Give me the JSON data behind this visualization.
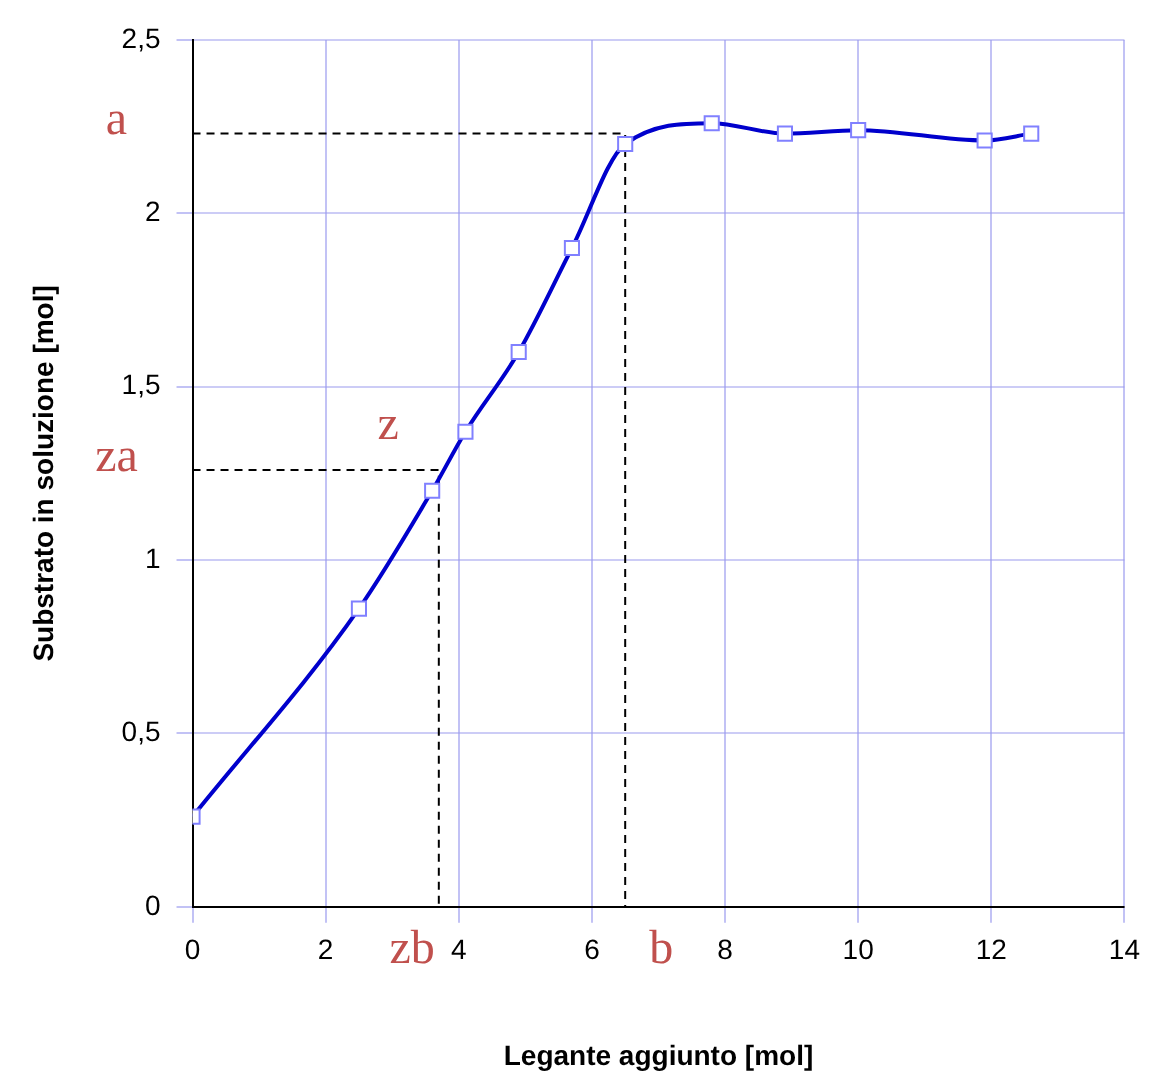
{
  "chart_data": {
    "type": "line",
    "xlabel": "Legante aggiunto [mol]",
    "ylabel": "Substrato in soluzione [mol]",
    "series": [
      {
        "color": "#0000cc",
        "x": [
          0,
          2.5,
          3.6,
          4.1,
          4.9,
          5.7,
          6.5,
          7.8,
          8.9,
          10,
          11.9,
          12.6
        ],
        "values": [
          0.26,
          0.86,
          1.2,
          1.37,
          1.6,
          1.9,
          2.2,
          2.26,
          2.23,
          2.24,
          2.21,
          2.23
        ]
      },
      {
        "color": "#000000",
        "x": [
          0,
          6.5,
          6.5
        ],
        "values": [
          2.23,
          2.23,
          0
        ],
        "line_style": "dashed",
        "marker": "none"
      },
      {
        "color": "#000000",
        "x": [
          0,
          3.7,
          3.7
        ],
        "values": [
          1.26,
          1.26,
          0
        ],
        "line_style": "dashed",
        "marker": "none"
      }
    ],
    "xlim": [
      0,
      14
    ],
    "xticks": [
      0,
      2,
      4,
      6,
      8,
      10,
      12,
      14
    ],
    "ylim": [
      0,
      2.5
    ],
    "yticks": [
      0,
      {
        "value": 0.5,
        "label": "0,5"
      },
      1,
      {
        "value": 1.5,
        "label": "1,5"
      },
      2,
      {
        "value": 2.5,
        "label": "2,5"
      }
    ],
    "annotations": [
      "a",
      "za",
      {
        "text": "z",
        "x": 3.6,
        "y": 1.26
      },
      "zb",
      "b"
    ],
    "grid": true,
    "legend": false,
    "marker": "square",
    "line_style": "solid"
  }
}
